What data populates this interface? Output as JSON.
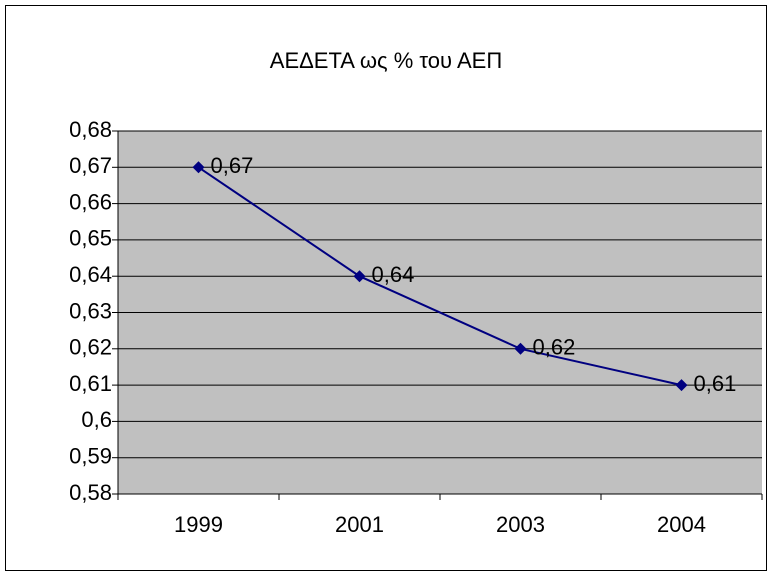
{
  "chart_data": {
    "type": "line",
    "title": "ΑΕΔΕΤΑ ως % του ΑΕΠ",
    "categories": [
      "1999",
      "2001",
      "2003",
      "2004"
    ],
    "series": [
      {
        "name": "ΑΕΔΕΤΑ ως % του ΑΕΠ",
        "color": "#000080",
        "values": [
          0.67,
          0.64,
          0.62,
          0.61
        ],
        "value_labels": [
          "0,67",
          "0,64",
          "0,62",
          "0,61"
        ]
      }
    ],
    "ylim": [
      0.58,
      0.68
    ],
    "yticks": [
      {
        "value": 0.58,
        "label": "0,58"
      },
      {
        "value": 0.59,
        "label": "0,59"
      },
      {
        "value": 0.6,
        "label": "0,6"
      },
      {
        "value": 0.61,
        "label": "0,61"
      },
      {
        "value": 0.62,
        "label": "0,62"
      },
      {
        "value": 0.63,
        "label": "0,63"
      },
      {
        "value": 0.64,
        "label": "0,64"
      },
      {
        "value": 0.65,
        "label": "0,65"
      },
      {
        "value": 0.66,
        "label": "0,66"
      },
      {
        "value": 0.67,
        "label": "0,67"
      },
      {
        "value": 0.68,
        "label": "0,68"
      }
    ],
    "grid": true,
    "plot_background": "#c0c0c0"
  }
}
